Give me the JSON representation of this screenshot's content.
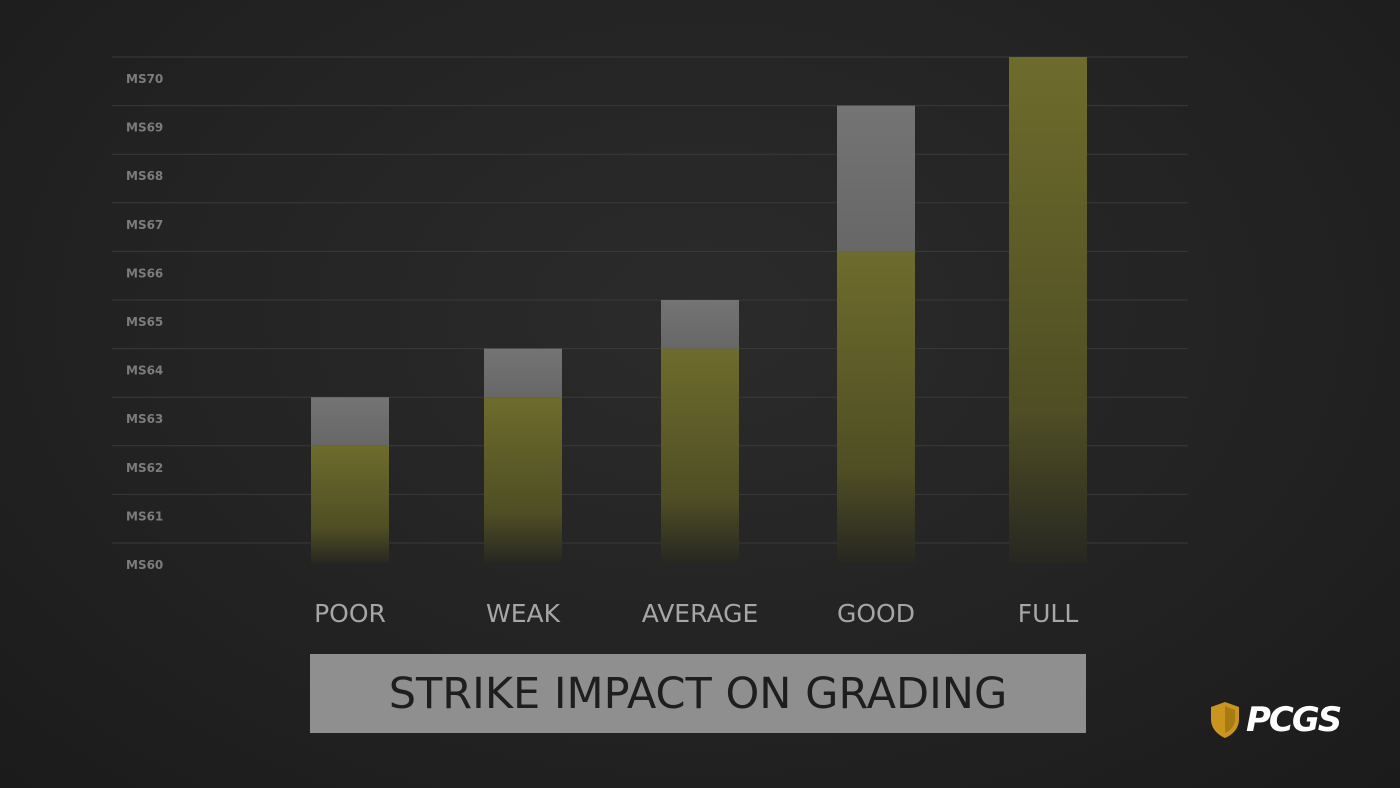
{
  "chart_data": {
    "type": "bar",
    "title": "STRIKE IMPACT ON GRADING",
    "xlabel": "",
    "ylabel": "",
    "ylim": [
      60,
      70
    ],
    "yticks": [
      "MS60",
      "MS61",
      "MS62",
      "MS63",
      "MS64",
      "MS65",
      "MS66",
      "MS67",
      "MS68",
      "MS69",
      "MS70"
    ],
    "categories": [
      "POOR",
      "WEAK",
      "AVERAGE",
      "GOOD",
      "FULL"
    ],
    "series": [
      {
        "values": [
          62,
          63,
          64,
          66,
          70
        ],
        "color": "#6b6a2e"
      },
      {
        "values": [
          63,
          64,
          65,
          69,
          70
        ],
        "color": "#6e6e6e"
      }
    ],
    "grid": true,
    "legend": "none"
  },
  "logo": {
    "text": "PCGS",
    "shield_color": "#c9951f"
  }
}
